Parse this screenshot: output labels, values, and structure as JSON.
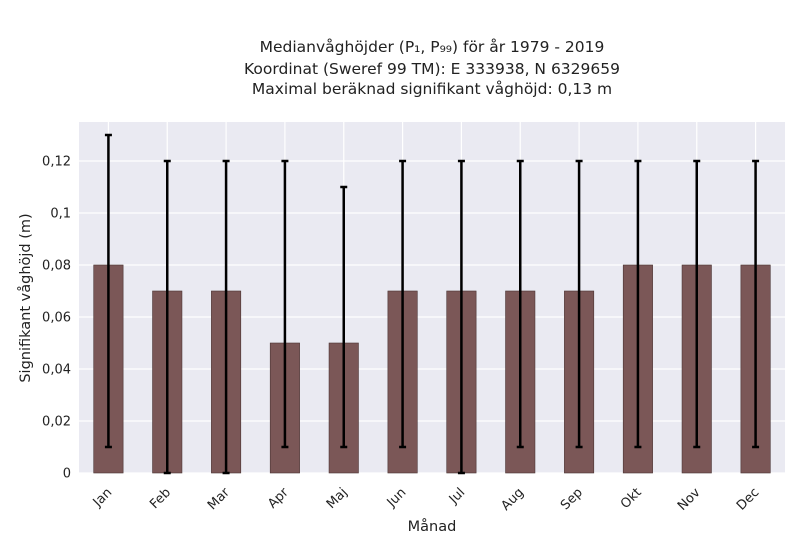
{
  "chart_data": {
    "type": "bar",
    "title_lines": [
      "Medianvåghöjder (P₁, P₉₉) för år 1979 - 2019",
      "Koordinat (Sweref 99 TM): E 333938, N 6329659",
      "Maximal beräknad signifikant våghöjd: 0,13 m"
    ],
    "xlabel": "Månad",
    "ylabel": "Signifikant våghöjd (m)",
    "categories": [
      "Jan",
      "Feb",
      "Mar",
      "Apr",
      "Maj",
      "Jun",
      "Jul",
      "Aug",
      "Sep",
      "Okt",
      "Nov",
      "Dec"
    ],
    "values": [
      0.08,
      0.07,
      0.07,
      0.05,
      0.05,
      0.07,
      0.07,
      0.07,
      0.07,
      0.08,
      0.08,
      0.08
    ],
    "error_low": [
      0.01,
      0.0,
      0.0,
      0.01,
      0.01,
      0.01,
      0.0,
      0.01,
      0.01,
      0.01,
      0.01,
      0.01
    ],
    "error_high": [
      0.13,
      0.12,
      0.12,
      0.12,
      0.11,
      0.12,
      0.12,
      0.12,
      0.12,
      0.12,
      0.12,
      0.12
    ],
    "ylim": [
      0,
      0.135
    ],
    "yticks": [
      0,
      0.02,
      0.04,
      0.06,
      0.08,
      0.1,
      0.12
    ],
    "ytick_labels": [
      "0",
      "0,02",
      "0,04",
      "0,06",
      "0,08",
      "0,1",
      "0,12"
    ],
    "grid": true,
    "colors": {
      "bar": "#7b5757",
      "bar_edge": "#4a3434",
      "error": "#000000",
      "plot_bg": "#eaeaf2",
      "grid": "#ffffff"
    }
  }
}
